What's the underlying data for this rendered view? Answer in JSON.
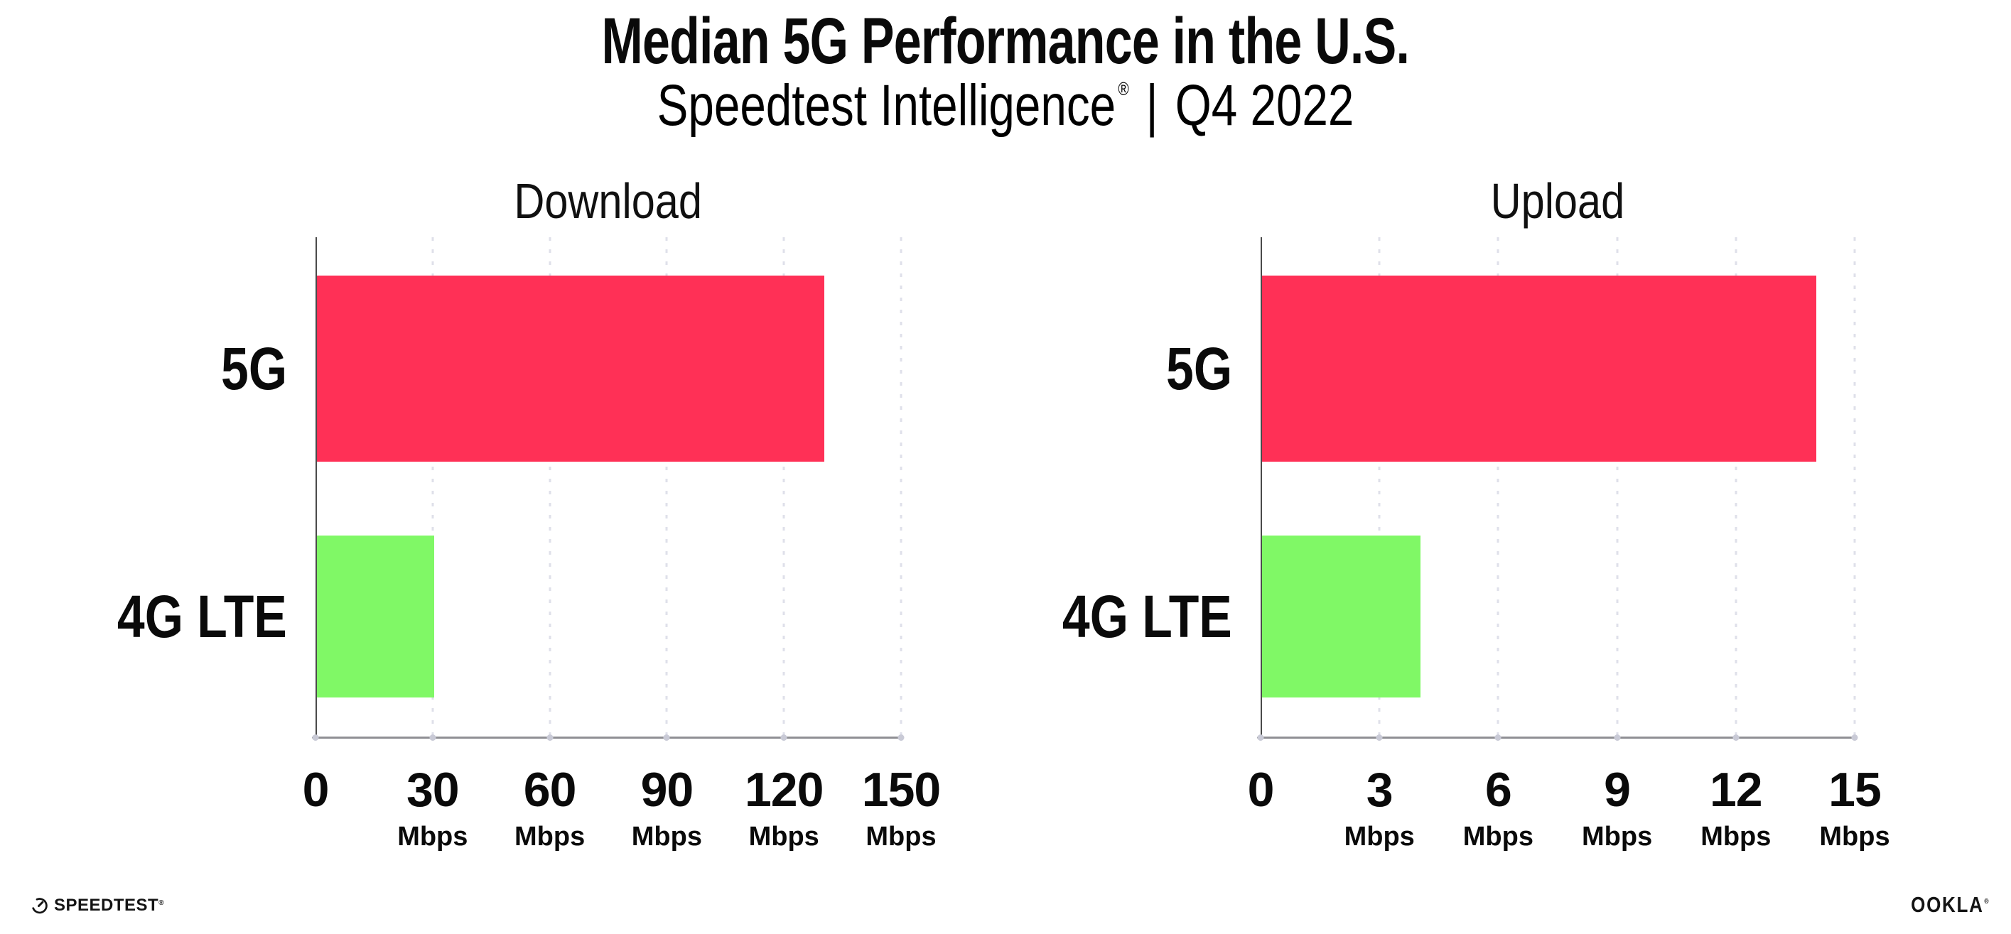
{
  "header": {
    "title": "Median 5G Performance in the U.S.",
    "subtitle": {
      "brand": "Speedtest Intelligence",
      "registered": "®",
      "separator": "|",
      "period": "Q4 2022"
    }
  },
  "chart_data": [
    {
      "type": "bar",
      "orientation": "horizontal",
      "title": "Download",
      "categories": [
        "5G",
        "4G LTE"
      ],
      "values": [
        130,
        30
      ],
      "unit": "Mbps",
      "xlim": [
        0,
        150
      ],
      "xticks": [
        0,
        30,
        60,
        90,
        120,
        150
      ],
      "bar_colors": [
        "#ff3056",
        "#80f866"
      ],
      "grid": "vertical dotted",
      "legend": "none"
    },
    {
      "type": "bar",
      "orientation": "horizontal",
      "title": "Upload",
      "categories": [
        "5G",
        "4G LTE"
      ],
      "values": [
        14,
        4
      ],
      "unit": "Mbps",
      "xlim": [
        0,
        15
      ],
      "xticks": [
        0,
        3,
        6,
        9,
        12,
        15
      ],
      "bar_colors": [
        "#ff3056",
        "#80f866"
      ],
      "grid": "vertical dotted",
      "legend": "none"
    }
  ],
  "colors": {
    "bar_5g": "#ff3056",
    "bar_4g_lte": "#80f866",
    "gridline": "#dfe0ea",
    "x_axis_line": "#8f8f94",
    "y_axis_line": "#4a4a4a",
    "text": "#0a0a0a"
  },
  "footer": {
    "speedtest_text": "SPEEDTEST",
    "speedtest_registered": "®",
    "ookla_text": "OOKLA",
    "ookla_registered": "®"
  }
}
